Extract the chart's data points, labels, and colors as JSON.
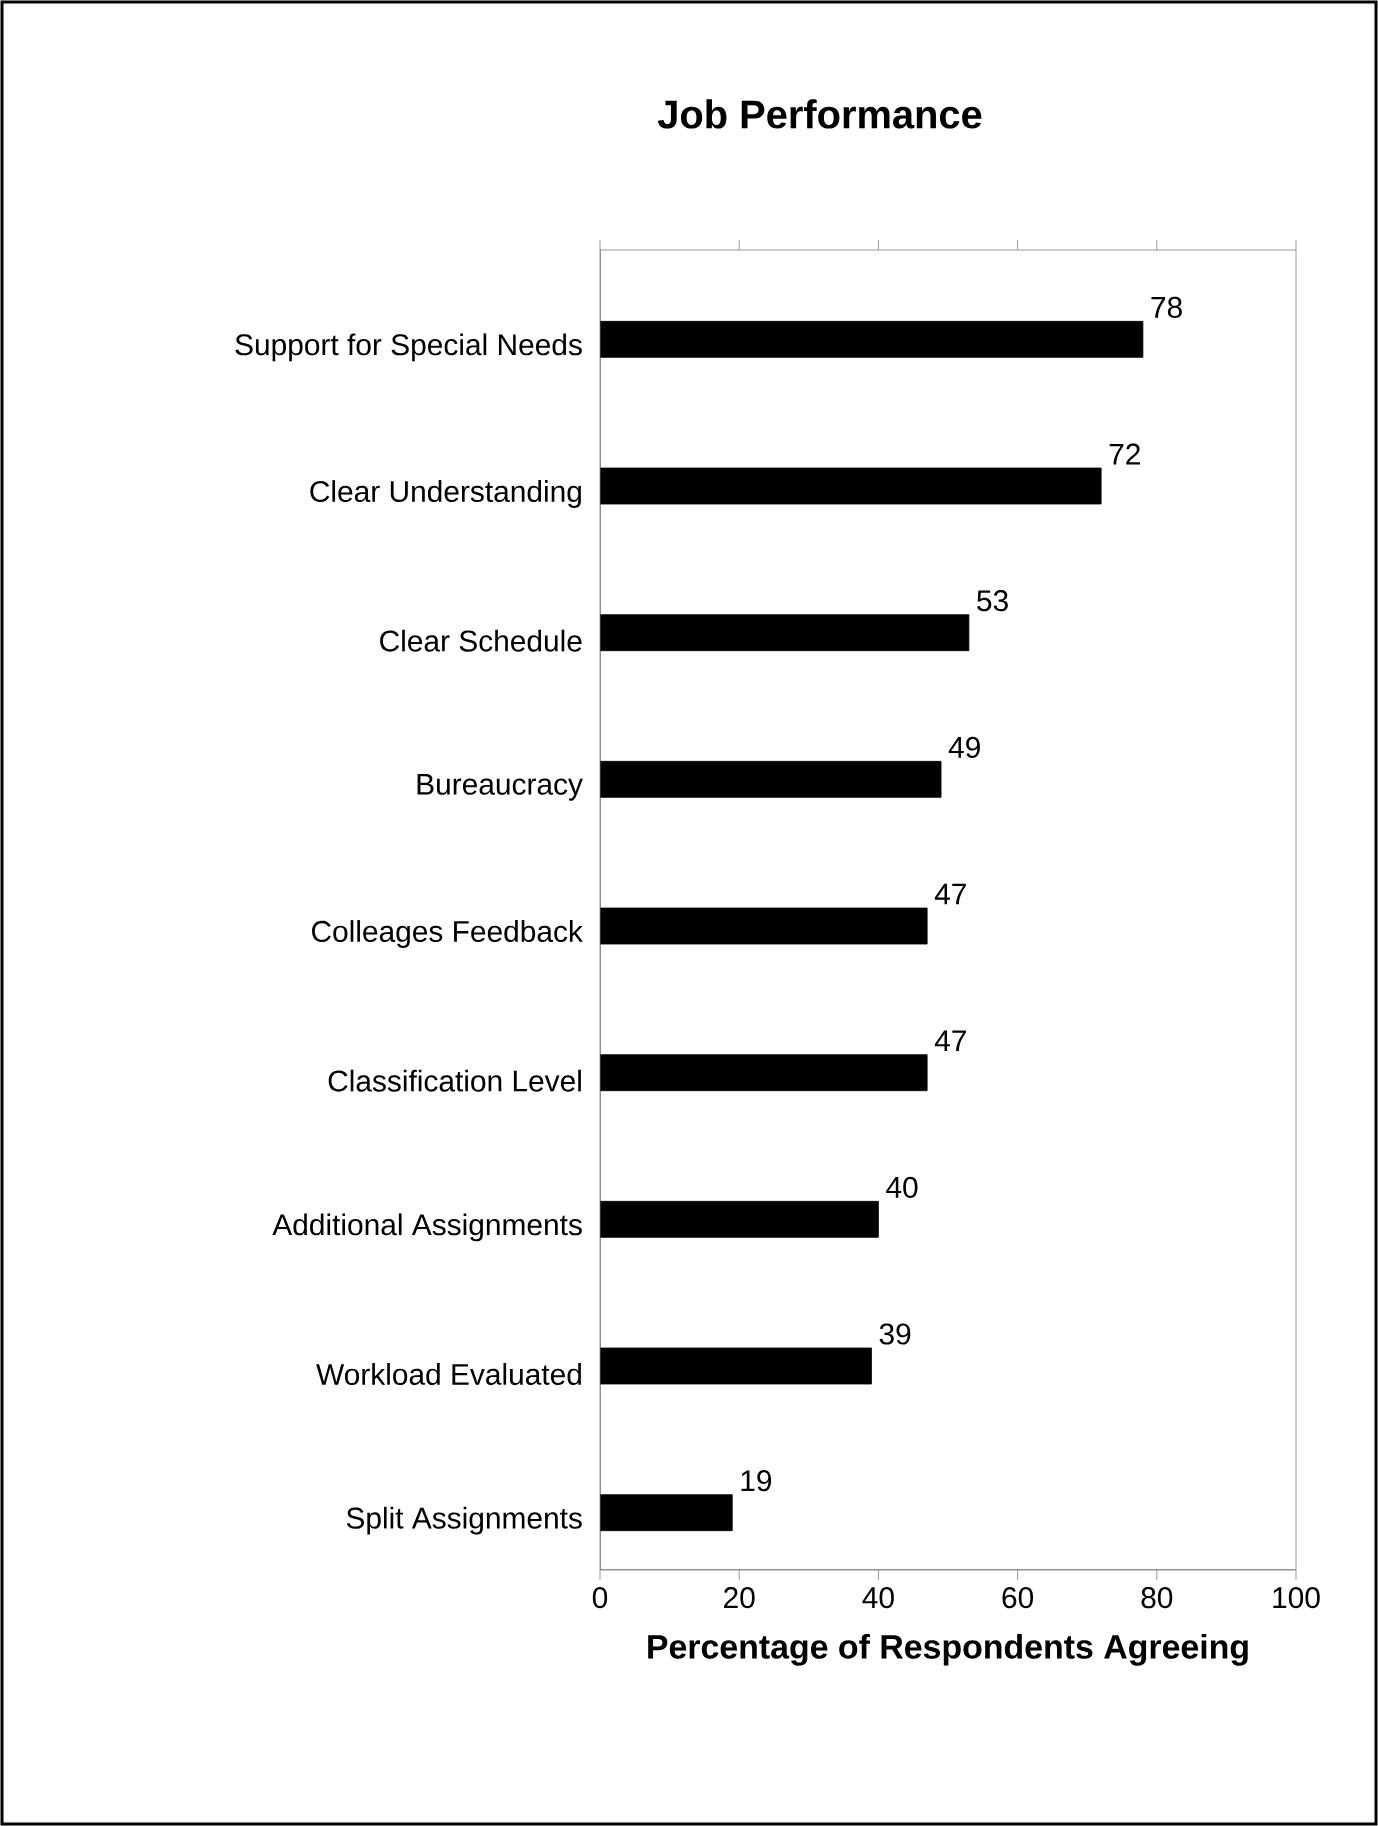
{
  "chart_data": {
    "type": "bar",
    "orientation": "horizontal",
    "title": "Job Performance",
    "xlabel": "Percentage of Respondents Agreeing",
    "categories": [
      "Support for Special Needs",
      "Clear Understanding",
      "Clear Schedule",
      "Bureaucracy",
      "Colleages Feedback",
      "Classification Level",
      "Additional Assignments",
      "Workload Evaluated",
      "Split Assignments"
    ],
    "values": [
      78,
      72,
      53,
      49,
      47,
      47,
      40,
      39,
      19
    ],
    "color": "#000000",
    "data_labels": true,
    "xlim": [
      0,
      100
    ],
    "xticks": [
      0,
      20,
      40,
      60,
      80,
      100
    ]
  }
}
